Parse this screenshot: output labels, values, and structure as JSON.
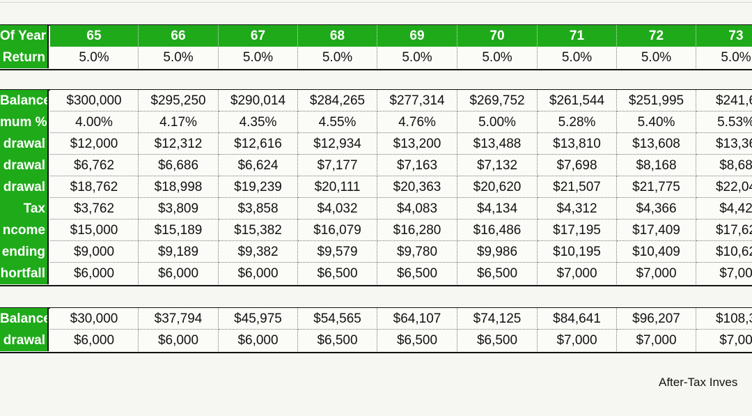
{
  "years": [
    "65",
    "66",
    "67",
    "68",
    "69",
    "70",
    "71",
    "72",
    "73"
  ],
  "sections": [
    {
      "rows": [
        {
          "label": "Of Year",
          "header": true,
          "values": [
            "65",
            "66",
            "67",
            "68",
            "69",
            "70",
            "71",
            "72",
            "73"
          ]
        },
        {
          "label": "Return",
          "values": [
            "5.0%",
            "5.0%",
            "5.0%",
            "5.0%",
            "5.0%",
            "5.0%",
            "5.0%",
            "5.0%",
            "5.0%"
          ]
        }
      ]
    },
    {
      "rows": [
        {
          "label": "Balance",
          "values": [
            "$300,000",
            "$295,250",
            "$290,014",
            "$284,265",
            "$277,314",
            "$269,752",
            "$261,544",
            "$251,995",
            "$241,6"
          ]
        },
        {
          "label": "mum %",
          "values": [
            "4.00%",
            "4.17%",
            "4.35%",
            "4.55%",
            "4.76%",
            "5.00%",
            "5.28%",
            "5.40%",
            "5.53%"
          ]
        },
        {
          "label": "drawal",
          "values": [
            "$12,000",
            "$12,312",
            "$12,616",
            "$12,934",
            "$13,200",
            "$13,488",
            "$13,810",
            "$13,608",
            "$13,36"
          ]
        },
        {
          "label": "drawal",
          "values": [
            "$6,762",
            "$6,686",
            "$6,624",
            "$7,177",
            "$7,163",
            "$7,132",
            "$7,698",
            "$8,168",
            "$8,68"
          ]
        },
        {
          "label": "drawal",
          "values": [
            "$18,762",
            "$18,998",
            "$19,239",
            "$20,111",
            "$20,363",
            "$20,620",
            "$21,507",
            "$21,775",
            "$22,04"
          ]
        },
        {
          "label": "Tax",
          "values": [
            "$3,762",
            "$3,809",
            "$3,858",
            "$4,032",
            "$4,083",
            "$4,134",
            "$4,312",
            "$4,366",
            "$4,42"
          ]
        },
        {
          "label": "ncome",
          "values": [
            "$15,000",
            "$15,189",
            "$15,382",
            "$16,079",
            "$16,280",
            "$16,486",
            "$17,195",
            "$17,409",
            "$17,62"
          ]
        },
        {
          "label": "ending",
          "values": [
            "$9,000",
            "$9,189",
            "$9,382",
            "$9,579",
            "$9,780",
            "$9,986",
            "$10,195",
            "$10,409",
            "$10,62"
          ]
        },
        {
          "label": "hortfall",
          "values": [
            "$6,000",
            "$6,000",
            "$6,000",
            "$6,500",
            "$6,500",
            "$6,500",
            "$7,000",
            "$7,000",
            "$7,00"
          ]
        }
      ]
    },
    {
      "rows": [
        {
          "label": "Balance",
          "values": [
            "$30,000",
            "$37,794",
            "$45,975",
            "$54,565",
            "$64,107",
            "$74,125",
            "$84,641",
            "$96,207",
            "$108,3"
          ]
        },
        {
          "label": "drawal",
          "values": [
            "$6,000",
            "$6,000",
            "$6,000",
            "$6,500",
            "$6,500",
            "$6,500",
            "$7,000",
            "$7,000",
            "$7,00"
          ]
        }
      ]
    }
  ],
  "caption": "After-Tax Inves",
  "colors": {
    "header_green": "#1faa1a",
    "background": "#f6f6f2",
    "border": "#111111"
  }
}
